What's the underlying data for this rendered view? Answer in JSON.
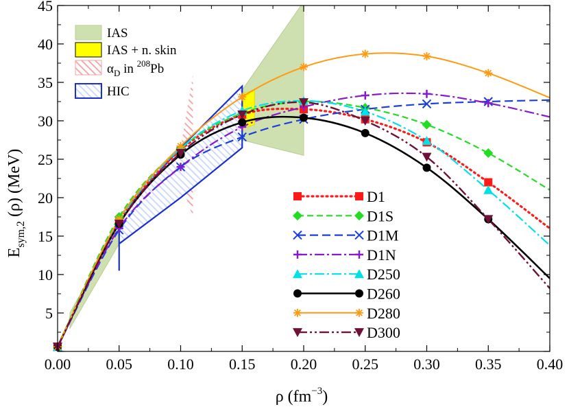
{
  "chart_data": {
    "type": "line",
    "title": "",
    "xlabel": "ρ (fm⁻³)",
    "xlabel_base": "ρ (fm",
    "xlabel_sup": "−3",
    "xlabel_close": ")",
    "ylabel": "E_sym,2 (ρ) (MeV)",
    "ylabel_base": "E",
    "ylabel_sub": "sym,2",
    "ylabel_rest": " (ρ) (MeV)",
    "xlim": [
      0.0,
      0.4
    ],
    "ylim": [
      0,
      45
    ],
    "xticks": [
      0.0,
      0.05,
      0.1,
      0.15,
      0.2,
      0.25,
      0.3,
      0.35,
      0.4
    ],
    "xtick_labels": [
      "0.00",
      "0.05",
      "0.10",
      "0.15",
      "0.20",
      "0.25",
      "0.30",
      "0.35",
      "0.40"
    ],
    "yticks": [
      5,
      10,
      15,
      20,
      25,
      30,
      35,
      40,
      45
    ],
    "ytick_labels": [
      "5",
      "10",
      "15",
      "20",
      "25",
      "30",
      "35",
      "40",
      "45"
    ],
    "bands": [
      {
        "name": "IAS",
        "label": "IAS",
        "style": "fill",
        "color": "#cfe0b0",
        "stroke": "#b8cc95",
        "upper": [
          [
            0.01,
            5
          ],
          [
            0.05,
            16.5
          ],
          [
            0.1,
            26
          ],
          [
            0.15,
            34
          ],
          [
            0.2,
            45.5
          ]
        ],
        "lower": [
          [
            0.01,
            3
          ],
          [
            0.05,
            14
          ],
          [
            0.1,
            23
          ],
          [
            0.15,
            27.5
          ],
          [
            0.2,
            25.5
          ]
        ]
      },
      {
        "name": "IAS + n. skin",
        "label": "IAS + n. skin",
        "style": "fill",
        "color": "#ffff00",
        "stroke": "#e6d800",
        "upper": [
          [
            0.05,
            17
          ],
          [
            0.1,
            26.5
          ],
          [
            0.15,
            33.5
          ],
          [
            0.16,
            34
          ]
        ],
        "lower": [
          [
            0.05,
            15
          ],
          [
            0.1,
            23.5
          ],
          [
            0.15,
            29
          ],
          [
            0.16,
            29.5
          ]
        ]
      },
      {
        "name": "alpha_D in 208Pb",
        "label": "α",
        "label_sub": "D",
        "label_mid": " in ",
        "label_sup": "208",
        "label_end": "Pb",
        "style": "hatch",
        "color": "#f4a0a0",
        "upper": [
          [
            0.09,
            24
          ],
          [
            0.1,
            26.5
          ],
          [
            0.11,
            36
          ]
        ],
        "lower": [
          [
            0.09,
            23
          ],
          [
            0.1,
            22
          ],
          [
            0.11,
            17.5
          ]
        ]
      },
      {
        "name": "HIC",
        "label": "HIC",
        "style": "hatch",
        "color": "#a8c0ff",
        "stroke": "#1a2fd0",
        "upper": [
          [
            0.05,
            17.5
          ],
          [
            0.1,
            26.5
          ],
          [
            0.15,
            34.5
          ]
        ],
        "lower": [
          [
            0.05,
            10.5
          ],
          [
            0.05,
            14
          ],
          [
            0.1,
            20
          ],
          [
            0.15,
            26.5
          ]
        ]
      }
    ],
    "series": [
      {
        "name": "D1",
        "label": "D1",
        "color": "#ff1a1a",
        "dash": "2 5",
        "width": 3.2,
        "linecap": "round",
        "marker": "square",
        "x": [
          0.0,
          0.05,
          0.1,
          0.15,
          0.2,
          0.25,
          0.3,
          0.35,
          0.4
        ],
        "y": [
          0.6,
          16.8,
          26.2,
          30.8,
          31.5,
          30.2,
          27.2,
          22.0,
          16.0
        ],
        "mx": [
          0.0,
          0.05,
          0.1,
          0.15,
          0.2,
          0.25,
          0.3,
          0.35
        ],
        "my": [
          0.6,
          16.8,
          26.2,
          30.8,
          31.5,
          30.2,
          27.2,
          22.0
        ]
      },
      {
        "name": "D1S",
        "label": "D1S",
        "color": "#22dd22",
        "dash": "9 5",
        "width": 2.2,
        "linecap": "butt",
        "marker": "diamond",
        "x": [
          0.0,
          0.05,
          0.1,
          0.15,
          0.2,
          0.25,
          0.3,
          0.35,
          0.4
        ],
        "y": [
          0.6,
          17.5,
          26.4,
          31.0,
          32.5,
          31.7,
          29.5,
          25.8,
          21.0
        ],
        "mx": [
          0.0,
          0.05,
          0.1,
          0.15,
          0.2,
          0.25,
          0.3,
          0.35
        ],
        "my": [
          0.6,
          17.5,
          26.4,
          31.0,
          32.5,
          31.7,
          29.5,
          25.8
        ]
      },
      {
        "name": "D1M",
        "label": "D1M",
        "color": "#1a3fdd",
        "dash": "12 6",
        "width": 2.2,
        "linecap": "butt",
        "marker": "x",
        "x": [
          0.0,
          0.05,
          0.1,
          0.15,
          0.2,
          0.25,
          0.3,
          0.35,
          0.4
        ],
        "y": [
          0.6,
          15.8,
          24.0,
          27.9,
          30.2,
          31.5,
          32.2,
          32.5,
          32.7
        ],
        "mx": [
          0.0,
          0.05,
          0.1,
          0.15,
          0.2,
          0.25,
          0.3,
          0.35
        ],
        "my": [
          0.6,
          15.8,
          24.0,
          27.9,
          30.2,
          31.5,
          32.2,
          32.5
        ]
      },
      {
        "name": "D1N",
        "label": "D1N",
        "color": "#8a18cc",
        "dash": "14 4 3 4",
        "width": 2.2,
        "linecap": "butt",
        "marker": "plus",
        "x": [
          0.0,
          0.05,
          0.1,
          0.15,
          0.2,
          0.25,
          0.3,
          0.35,
          0.4
        ],
        "y": [
          0.6,
          16.0,
          24.0,
          29.2,
          31.8,
          33.3,
          33.5,
          32.3,
          30.5
        ],
        "mx": [
          0.0,
          0.05,
          0.1,
          0.15,
          0.2,
          0.25,
          0.3,
          0.35
        ],
        "my": [
          0.6,
          16.0,
          24.0,
          29.2,
          31.8,
          33.3,
          33.5,
          32.3
        ]
      },
      {
        "name": "D250",
        "label": "D250",
        "color": "#00e0e8",
        "dash": "14 4 3 4",
        "width": 2.2,
        "linecap": "butt",
        "marker": "triangle",
        "x": [
          0.0,
          0.05,
          0.1,
          0.15,
          0.2,
          0.25,
          0.3,
          0.35,
          0.4
        ],
        "y": [
          0.6,
          17.0,
          26.4,
          31.3,
          32.6,
          31.2,
          27.4,
          21.0,
          13.8
        ],
        "mx": [
          0.0,
          0.05,
          0.1,
          0.15,
          0.2,
          0.25,
          0.3,
          0.35
        ],
        "my": [
          0.6,
          17.0,
          26.4,
          31.3,
          32.6,
          31.2,
          27.4,
          21.0
        ]
      },
      {
        "name": "D260",
        "label": "D260",
        "color": "#000000",
        "dash": "",
        "width": 2.6,
        "linecap": "butt",
        "marker": "circle",
        "x": [
          0.0,
          0.05,
          0.1,
          0.15,
          0.2,
          0.25,
          0.3,
          0.35,
          0.4
        ],
        "y": [
          0.6,
          16.6,
          25.6,
          29.8,
          30.4,
          28.4,
          23.9,
          17.2,
          9.5
        ],
        "mx": [
          0.0,
          0.05,
          0.1,
          0.15,
          0.2,
          0.25,
          0.3,
          0.35
        ],
        "my": [
          0.6,
          16.6,
          25.6,
          29.8,
          30.4,
          28.4,
          23.9,
          17.2
        ]
      },
      {
        "name": "D280",
        "label": "D280",
        "color": "#ff9a10",
        "dash": "",
        "width": 2.0,
        "linecap": "butt",
        "marker": "asterisk",
        "x": [
          0.0,
          0.05,
          0.1,
          0.15,
          0.2,
          0.25,
          0.3,
          0.35,
          0.4
        ],
        "y": [
          0.6,
          17.2,
          26.7,
          33.1,
          37.0,
          38.7,
          38.4,
          36.2,
          33.0
        ],
        "mx": [
          0.0,
          0.05,
          0.1,
          0.15,
          0.2,
          0.25,
          0.3,
          0.35
        ],
        "my": [
          0.6,
          17.2,
          26.7,
          33.1,
          37.0,
          38.7,
          38.4,
          36.2
        ]
      },
      {
        "name": "D300",
        "label": "D300",
        "color": "#6e1038",
        "dash": "14 4 3 4 3 4",
        "width": 2.4,
        "linecap": "butt",
        "marker": "triangle-down",
        "x": [
          0.0,
          0.05,
          0.1,
          0.15,
          0.2,
          0.25,
          0.3,
          0.35,
          0.4
        ],
        "y": [
          0.6,
          16.6,
          25.8,
          30.8,
          32.4,
          30.0,
          25.3,
          17.2,
          8.2
        ],
        "mx": [
          0.0,
          0.05,
          0.1,
          0.15,
          0.2,
          0.25,
          0.3,
          0.35
        ],
        "my": [
          0.6,
          16.6,
          25.8,
          30.8,
          32.4,
          30.0,
          25.3,
          17.2
        ]
      }
    ],
    "legend_position": "lower-center",
    "band_legend_position": "top-left"
  }
}
